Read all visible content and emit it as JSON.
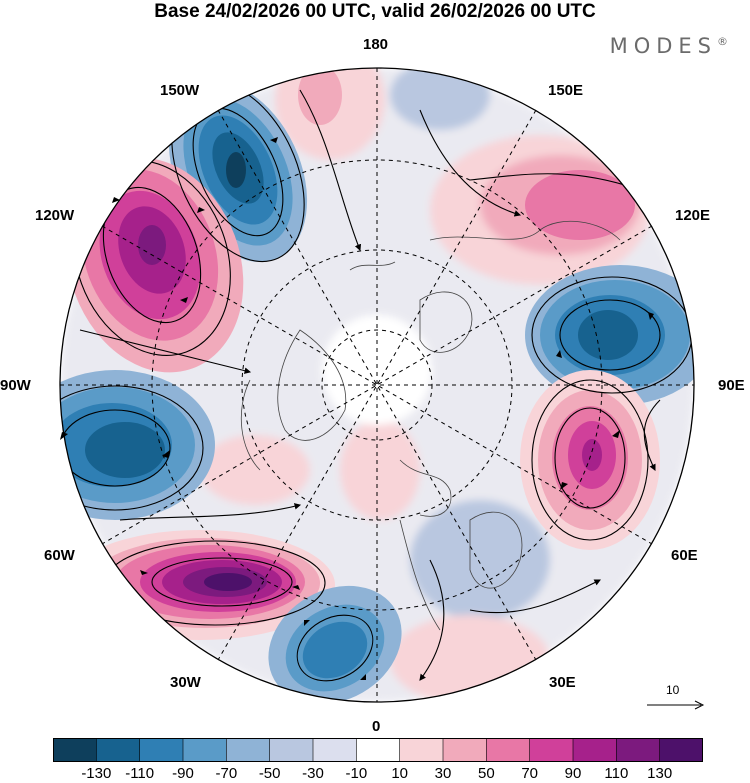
{
  "title": "Base 24/02/2026 00 UTC, valid 26/02/2026 00 UTC",
  "brand": "MODES",
  "brand_mark": "®",
  "longitude_labels": {
    "lon_180": "180",
    "lon_150W": "150W",
    "lon_150E": "150E",
    "lon_120W": "120W",
    "lon_120E": "120E",
    "lon_90W": "90W",
    "lon_90E": "90E",
    "lon_60W": "60W",
    "lon_60E": "60E",
    "lon_30W": "30W",
    "lon_30E": "30E",
    "lon_0": "0"
  },
  "reference_vector": {
    "label": "10"
  },
  "colorbar": {
    "ticks": [
      "-130",
      "-110",
      "-90",
      "-70",
      "-50",
      "-30",
      "-10",
      "10",
      "30",
      "50",
      "70",
      "90",
      "110",
      "130"
    ],
    "colors": [
      "#0e3f5c",
      "#17628f",
      "#2f7fb4",
      "#5a9bc8",
      "#8fb3d6",
      "#b9c7e0",
      "#dcdfee",
      "#ffffff",
      "#f8d4d8",
      "#f1aabb",
      "#e877a6",
      "#d0409a",
      "#a6218b",
      "#7c1a7e",
      "#4d116a"
    ]
  },
  "anomaly_centers": [
    {
      "longitude": "160W",
      "sign": "negative",
      "peak": "-110"
    },
    {
      "longitude": "120W",
      "sign": "positive",
      "peak": "110"
    },
    {
      "longitude": "90E",
      "sign": "negative",
      "peak": "-110"
    },
    {
      "longitude": "70W",
      "sign": "negative",
      "peak": "-90"
    },
    {
      "longitude": "65E",
      "sign": "positive",
      "peak": "90"
    },
    {
      "longitude": "40W",
      "sign": "positive",
      "peak": "130"
    },
    {
      "longitude": "20W",
      "sign": "negative",
      "peak": "-90"
    },
    {
      "longitude": "130E",
      "sign": "positive",
      "peak": "70"
    },
    {
      "longitude": "180",
      "sign": "positive",
      "peak": "30"
    }
  ]
}
